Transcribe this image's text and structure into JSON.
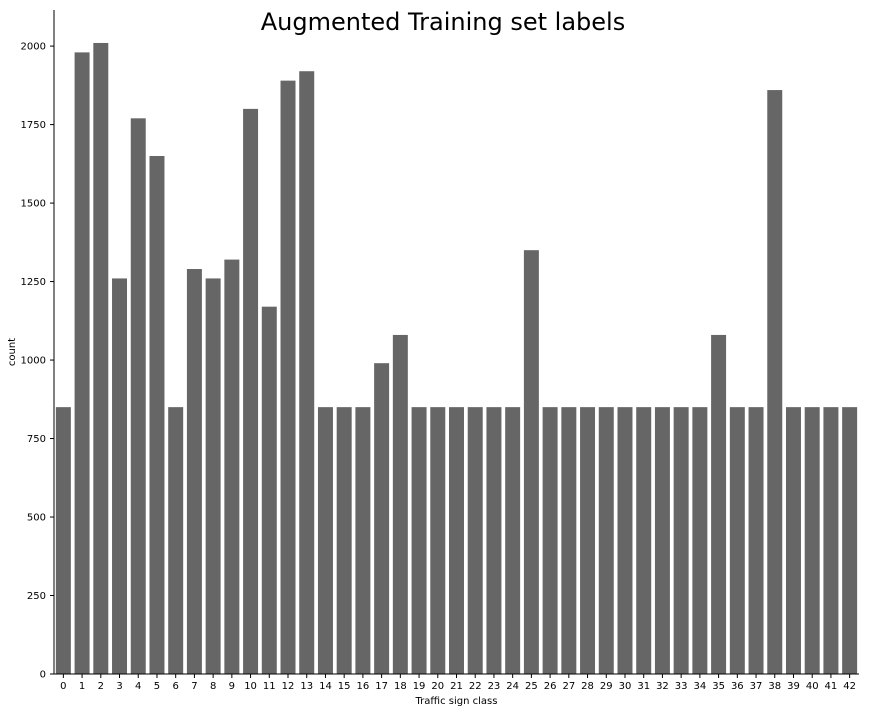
{
  "colors": {
    "bar": "#666666",
    "axis": "#000000",
    "background": "#ffffff"
  },
  "chart_data": {
    "type": "bar",
    "title": "Augmented Training set labels",
    "xlabel": "Traffic sign class",
    "ylabel": "count",
    "categories": [
      "0",
      "1",
      "2",
      "3",
      "4",
      "5",
      "6",
      "7",
      "8",
      "9",
      "10",
      "11",
      "12",
      "13",
      "14",
      "15",
      "16",
      "17",
      "18",
      "19",
      "20",
      "21",
      "22",
      "23",
      "24",
      "25",
      "26",
      "27",
      "28",
      "29",
      "30",
      "31",
      "32",
      "33",
      "34",
      "35",
      "36",
      "37",
      "38",
      "39",
      "40",
      "41",
      "42"
    ],
    "values": [
      850,
      1980,
      2010,
      1260,
      1770,
      1650,
      850,
      1290,
      1260,
      1320,
      1800,
      1170,
      1890,
      1920,
      850,
      850,
      850,
      990,
      1080,
      850,
      850,
      850,
      850,
      850,
      850,
      1350,
      850,
      850,
      850,
      850,
      850,
      850,
      850,
      850,
      850,
      1080,
      850,
      850,
      1860,
      850,
      850,
      850,
      850
    ],
    "ylim": [
      0,
      2115
    ],
    "yticks": [
      0,
      250,
      500,
      750,
      1000,
      1250,
      1500,
      1750,
      2000
    ],
    "ytick_labels": [
      "0",
      "250",
      "500",
      "750",
      "1000",
      "1250",
      "1500",
      "1750",
      "2000"
    ],
    "grid": false,
    "legend": "none"
  }
}
